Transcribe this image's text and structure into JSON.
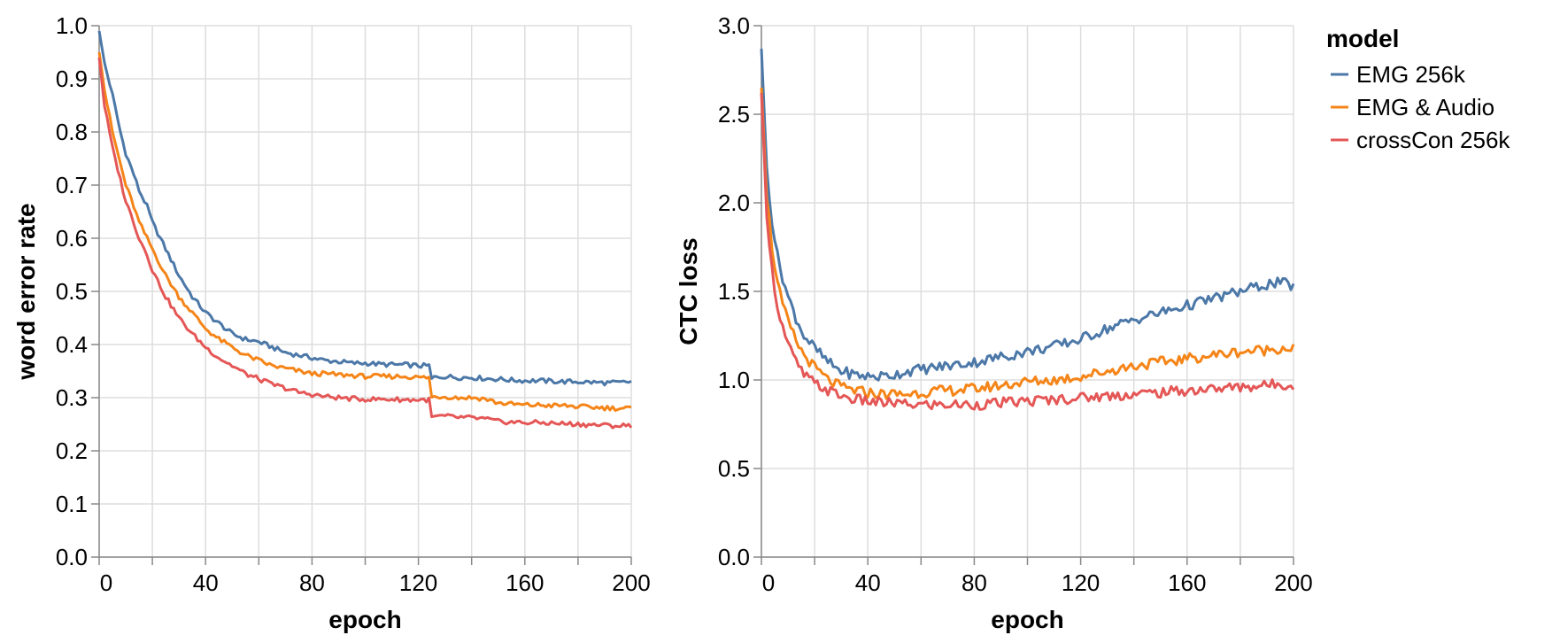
{
  "chart_data": [
    {
      "type": "line",
      "xlabel": "epoch",
      "ylabel": "word error rate",
      "xlim": [
        0,
        200
      ],
      "ylim": [
        0,
        1.0
      ],
      "x_ticks": [
        0,
        40,
        80,
        120,
        160,
        200
      ],
      "x_tick_labels": [
        "0",
        "40",
        "80",
        "120",
        "160",
        "200"
      ],
      "y_ticks": [
        0,
        0.1,
        0.2,
        0.3,
        0.4,
        0.5,
        0.6,
        0.7,
        0.8,
        0.9,
        1.0
      ],
      "y_tick_labels": [
        "0.0",
        "0.1",
        "0.2",
        "0.3",
        "0.4",
        "0.5",
        "0.6",
        "0.7",
        "0.8",
        "0.9",
        "1.0"
      ],
      "grid": true,
      "series": [
        {
          "name": "EMG 256k",
          "color": "#4c78a8",
          "x": [
            0,
            2,
            5,
            8,
            10,
            13,
            15,
            18,
            20,
            25,
            30,
            35,
            40,
            45,
            50,
            55,
            60,
            65,
            70,
            75,
            80,
            85,
            90,
            95,
            100,
            105,
            110,
            115,
            120,
            124,
            125,
            126,
            130,
            135,
            140,
            145,
            150,
            155,
            160,
            165,
            170,
            175,
            180,
            185,
            190,
            195,
            200
          ],
          "y": [
            0.99,
            0.93,
            0.87,
            0.8,
            0.76,
            0.72,
            0.69,
            0.66,
            0.63,
            0.58,
            0.53,
            0.49,
            0.46,
            0.44,
            0.42,
            0.41,
            0.405,
            0.395,
            0.385,
            0.38,
            0.375,
            0.37,
            0.368,
            0.365,
            0.365,
            0.363,
            0.362,
            0.362,
            0.36,
            0.36,
            0.335,
            0.338,
            0.34,
            0.338,
            0.338,
            0.336,
            0.335,
            0.333,
            0.332,
            0.332,
            0.331,
            0.33,
            0.33,
            0.329,
            0.328,
            0.328,
            0.33
          ]
        },
        {
          "name": "EMG & Audio",
          "color": "#f58518",
          "x": [
            0,
            2,
            5,
            8,
            10,
            13,
            15,
            18,
            20,
            25,
            30,
            35,
            40,
            45,
            50,
            55,
            60,
            65,
            70,
            75,
            80,
            85,
            90,
            95,
            100,
            105,
            110,
            115,
            120,
            124,
            125,
            126,
            130,
            135,
            140,
            145,
            150,
            155,
            160,
            165,
            170,
            175,
            180,
            185,
            190,
            195,
            200
          ],
          "y": [
            0.95,
            0.88,
            0.8,
            0.74,
            0.7,
            0.66,
            0.63,
            0.6,
            0.58,
            0.53,
            0.49,
            0.46,
            0.43,
            0.41,
            0.395,
            0.38,
            0.37,
            0.36,
            0.355,
            0.35,
            0.345,
            0.345,
            0.343,
            0.342,
            0.34,
            0.34,
            0.34,
            0.34,
            0.338,
            0.338,
            0.3,
            0.302,
            0.302,
            0.3,
            0.3,
            0.298,
            0.29,
            0.288,
            0.286,
            0.286,
            0.285,
            0.285,
            0.283,
            0.282,
            0.281,
            0.28,
            0.28
          ]
        },
        {
          "name": "crossCon 256k",
          "color": "#e45756",
          "x": [
            0,
            2,
            5,
            8,
            10,
            13,
            15,
            18,
            20,
            25,
            30,
            35,
            40,
            45,
            50,
            55,
            60,
            65,
            70,
            75,
            80,
            85,
            90,
            95,
            100,
            105,
            110,
            115,
            120,
            124,
            125,
            126,
            130,
            135,
            140,
            145,
            150,
            155,
            160,
            165,
            170,
            175,
            180,
            185,
            190,
            195,
            200
          ],
          "y": [
            0.94,
            0.85,
            0.77,
            0.71,
            0.67,
            0.63,
            0.6,
            0.57,
            0.54,
            0.49,
            0.45,
            0.42,
            0.395,
            0.375,
            0.36,
            0.345,
            0.335,
            0.325,
            0.318,
            0.31,
            0.306,
            0.302,
            0.3,
            0.298,
            0.297,
            0.297,
            0.297,
            0.296,
            0.296,
            0.296,
            0.262,
            0.264,
            0.265,
            0.263,
            0.262,
            0.26,
            0.255,
            0.254,
            0.253,
            0.253,
            0.252,
            0.251,
            0.25,
            0.249,
            0.248,
            0.247,
            0.248
          ]
        }
      ]
    },
    {
      "type": "line",
      "xlabel": "epoch",
      "ylabel": "CTC loss",
      "xlim": [
        0,
        200
      ],
      "ylim": [
        0,
        3.0
      ],
      "x_ticks": [
        0,
        40,
        80,
        120,
        160,
        200
      ],
      "x_tick_labels": [
        "0",
        "40",
        "80",
        "120",
        "160",
        "200"
      ],
      "y_ticks": [
        0,
        0.5,
        1.0,
        1.5,
        2.0,
        2.5,
        3.0
      ],
      "y_tick_labels": [
        "0.0",
        "0.5",
        "1.0",
        "1.5",
        "2.0",
        "2.5",
        "3.0"
      ],
      "grid": true,
      "series": [
        {
          "name": "EMG 256k",
          "color": "#4c78a8",
          "x": [
            0,
            2,
            4,
            6,
            8,
            10,
            13,
            16,
            20,
            25,
            30,
            35,
            40,
            45,
            50,
            55,
            60,
            70,
            80,
            90,
            100,
            110,
            120,
            130,
            140,
            150,
            160,
            170,
            180,
            190,
            195,
            200
          ],
          "y": [
            2.87,
            2.2,
            1.9,
            1.7,
            1.58,
            1.47,
            1.35,
            1.25,
            1.18,
            1.1,
            1.05,
            1.03,
            1.02,
            1.02,
            1.03,
            1.05,
            1.06,
            1.08,
            1.1,
            1.13,
            1.16,
            1.19,
            1.23,
            1.29,
            1.34,
            1.38,
            1.42,
            1.46,
            1.5,
            1.54,
            1.55,
            1.53
          ]
        },
        {
          "name": "EMG & Audio",
          "color": "#f58518",
          "x": [
            0,
            2,
            4,
            6,
            8,
            10,
            13,
            16,
            20,
            25,
            30,
            35,
            40,
            45,
            50,
            55,
            60,
            70,
            80,
            90,
            100,
            110,
            120,
            130,
            140,
            150,
            160,
            170,
            180,
            190,
            195,
            200
          ],
          "y": [
            2.65,
            2.05,
            1.75,
            1.55,
            1.42,
            1.33,
            1.22,
            1.14,
            1.07,
            1.0,
            0.96,
            0.94,
            0.93,
            0.92,
            0.92,
            0.92,
            0.93,
            0.94,
            0.95,
            0.97,
            0.99,
            1.0,
            1.02,
            1.05,
            1.08,
            1.1,
            1.12,
            1.14,
            1.16,
            1.17,
            1.18,
            1.18
          ]
        },
        {
          "name": "crossCon 256k",
          "color": "#e45756",
          "x": [
            0,
            2,
            4,
            6,
            8,
            10,
            13,
            16,
            20,
            25,
            30,
            35,
            40,
            45,
            50,
            55,
            60,
            70,
            80,
            90,
            100,
            110,
            120,
            130,
            140,
            150,
            160,
            170,
            180,
            190,
            195,
            200
          ],
          "y": [
            2.62,
            1.95,
            1.62,
            1.42,
            1.3,
            1.2,
            1.1,
            1.03,
            0.98,
            0.94,
            0.91,
            0.89,
            0.88,
            0.87,
            0.87,
            0.86,
            0.86,
            0.86,
            0.86,
            0.87,
            0.88,
            0.89,
            0.9,
            0.91,
            0.92,
            0.93,
            0.94,
            0.95,
            0.96,
            0.97,
            0.98,
            0.97
          ]
        }
      ]
    }
  ],
  "legend": {
    "title": "model",
    "items": [
      {
        "label": "EMG 256k",
        "color": "#4c78a8"
      },
      {
        "label": "EMG & Audio",
        "color": "#f58518"
      },
      {
        "label": "crossCon 256k",
        "color": "#e45756"
      }
    ]
  }
}
